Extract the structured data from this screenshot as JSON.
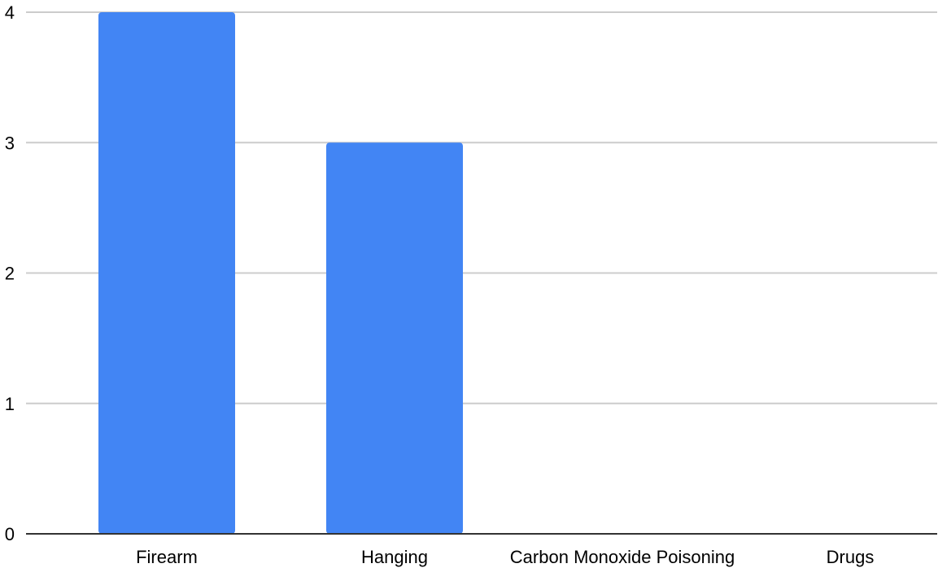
{
  "chart_data": {
    "type": "bar",
    "title": "",
    "xlabel": "",
    "ylabel": "",
    "categories": [
      "Firearm",
      "Hanging",
      "Carbon Monoxide Poisoning",
      "Drugs"
    ],
    "values": [
      4,
      3,
      0,
      0
    ],
    "ylim": [
      0,
      4
    ],
    "yticks": [
      "0",
      "1",
      "2",
      "3",
      "4"
    ],
    "grid": true,
    "legend": "none",
    "colors": {
      "bar": "#4285f4",
      "grid": "#cccccc",
      "baseline": "#333333",
      "text": "#000000"
    }
  }
}
